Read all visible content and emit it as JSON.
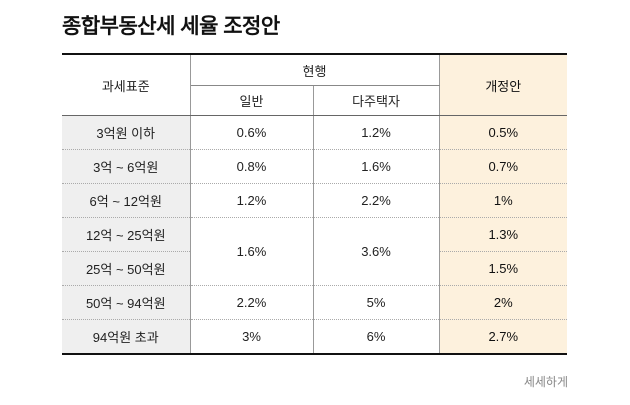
{
  "title": "종합부동산세 세율 조정안",
  "table": {
    "header_base": "과세표준",
    "header_current": "현행",
    "header_normal": "일반",
    "header_multi": "다주택자",
    "header_proposal": "개정안",
    "rows": [
      {
        "bracket": "3억원 이하",
        "normal": "0.6%",
        "multi": "1.2%",
        "proposal": "0.5%"
      },
      {
        "bracket": "3억 ~ 6억원",
        "normal": "0.8%",
        "multi": "1.6%",
        "proposal": "0.7%"
      },
      {
        "bracket": "6억 ~ 12억원",
        "normal": "1.2%",
        "multi": "2.2%",
        "proposal": "1%"
      },
      {
        "bracket": "12억 ~ 25억원",
        "normal": "1.6%",
        "multi": "3.6%",
        "proposal": "1.3%"
      },
      {
        "bracket": "25억 ~ 50억원",
        "proposal": "1.5%"
      },
      {
        "bracket": "50억 ~ 94억원",
        "normal": "2.2%",
        "multi": "5%",
        "proposal": "2%"
      },
      {
        "bracket": "94억원 초과",
        "normal": "3%",
        "multi": "6%",
        "proposal": "2.7%"
      }
    ]
  },
  "source": "세세하게",
  "colors": {
    "proposal_bg": "#fdf1dd",
    "bracket_bg": "#efefef"
  }
}
